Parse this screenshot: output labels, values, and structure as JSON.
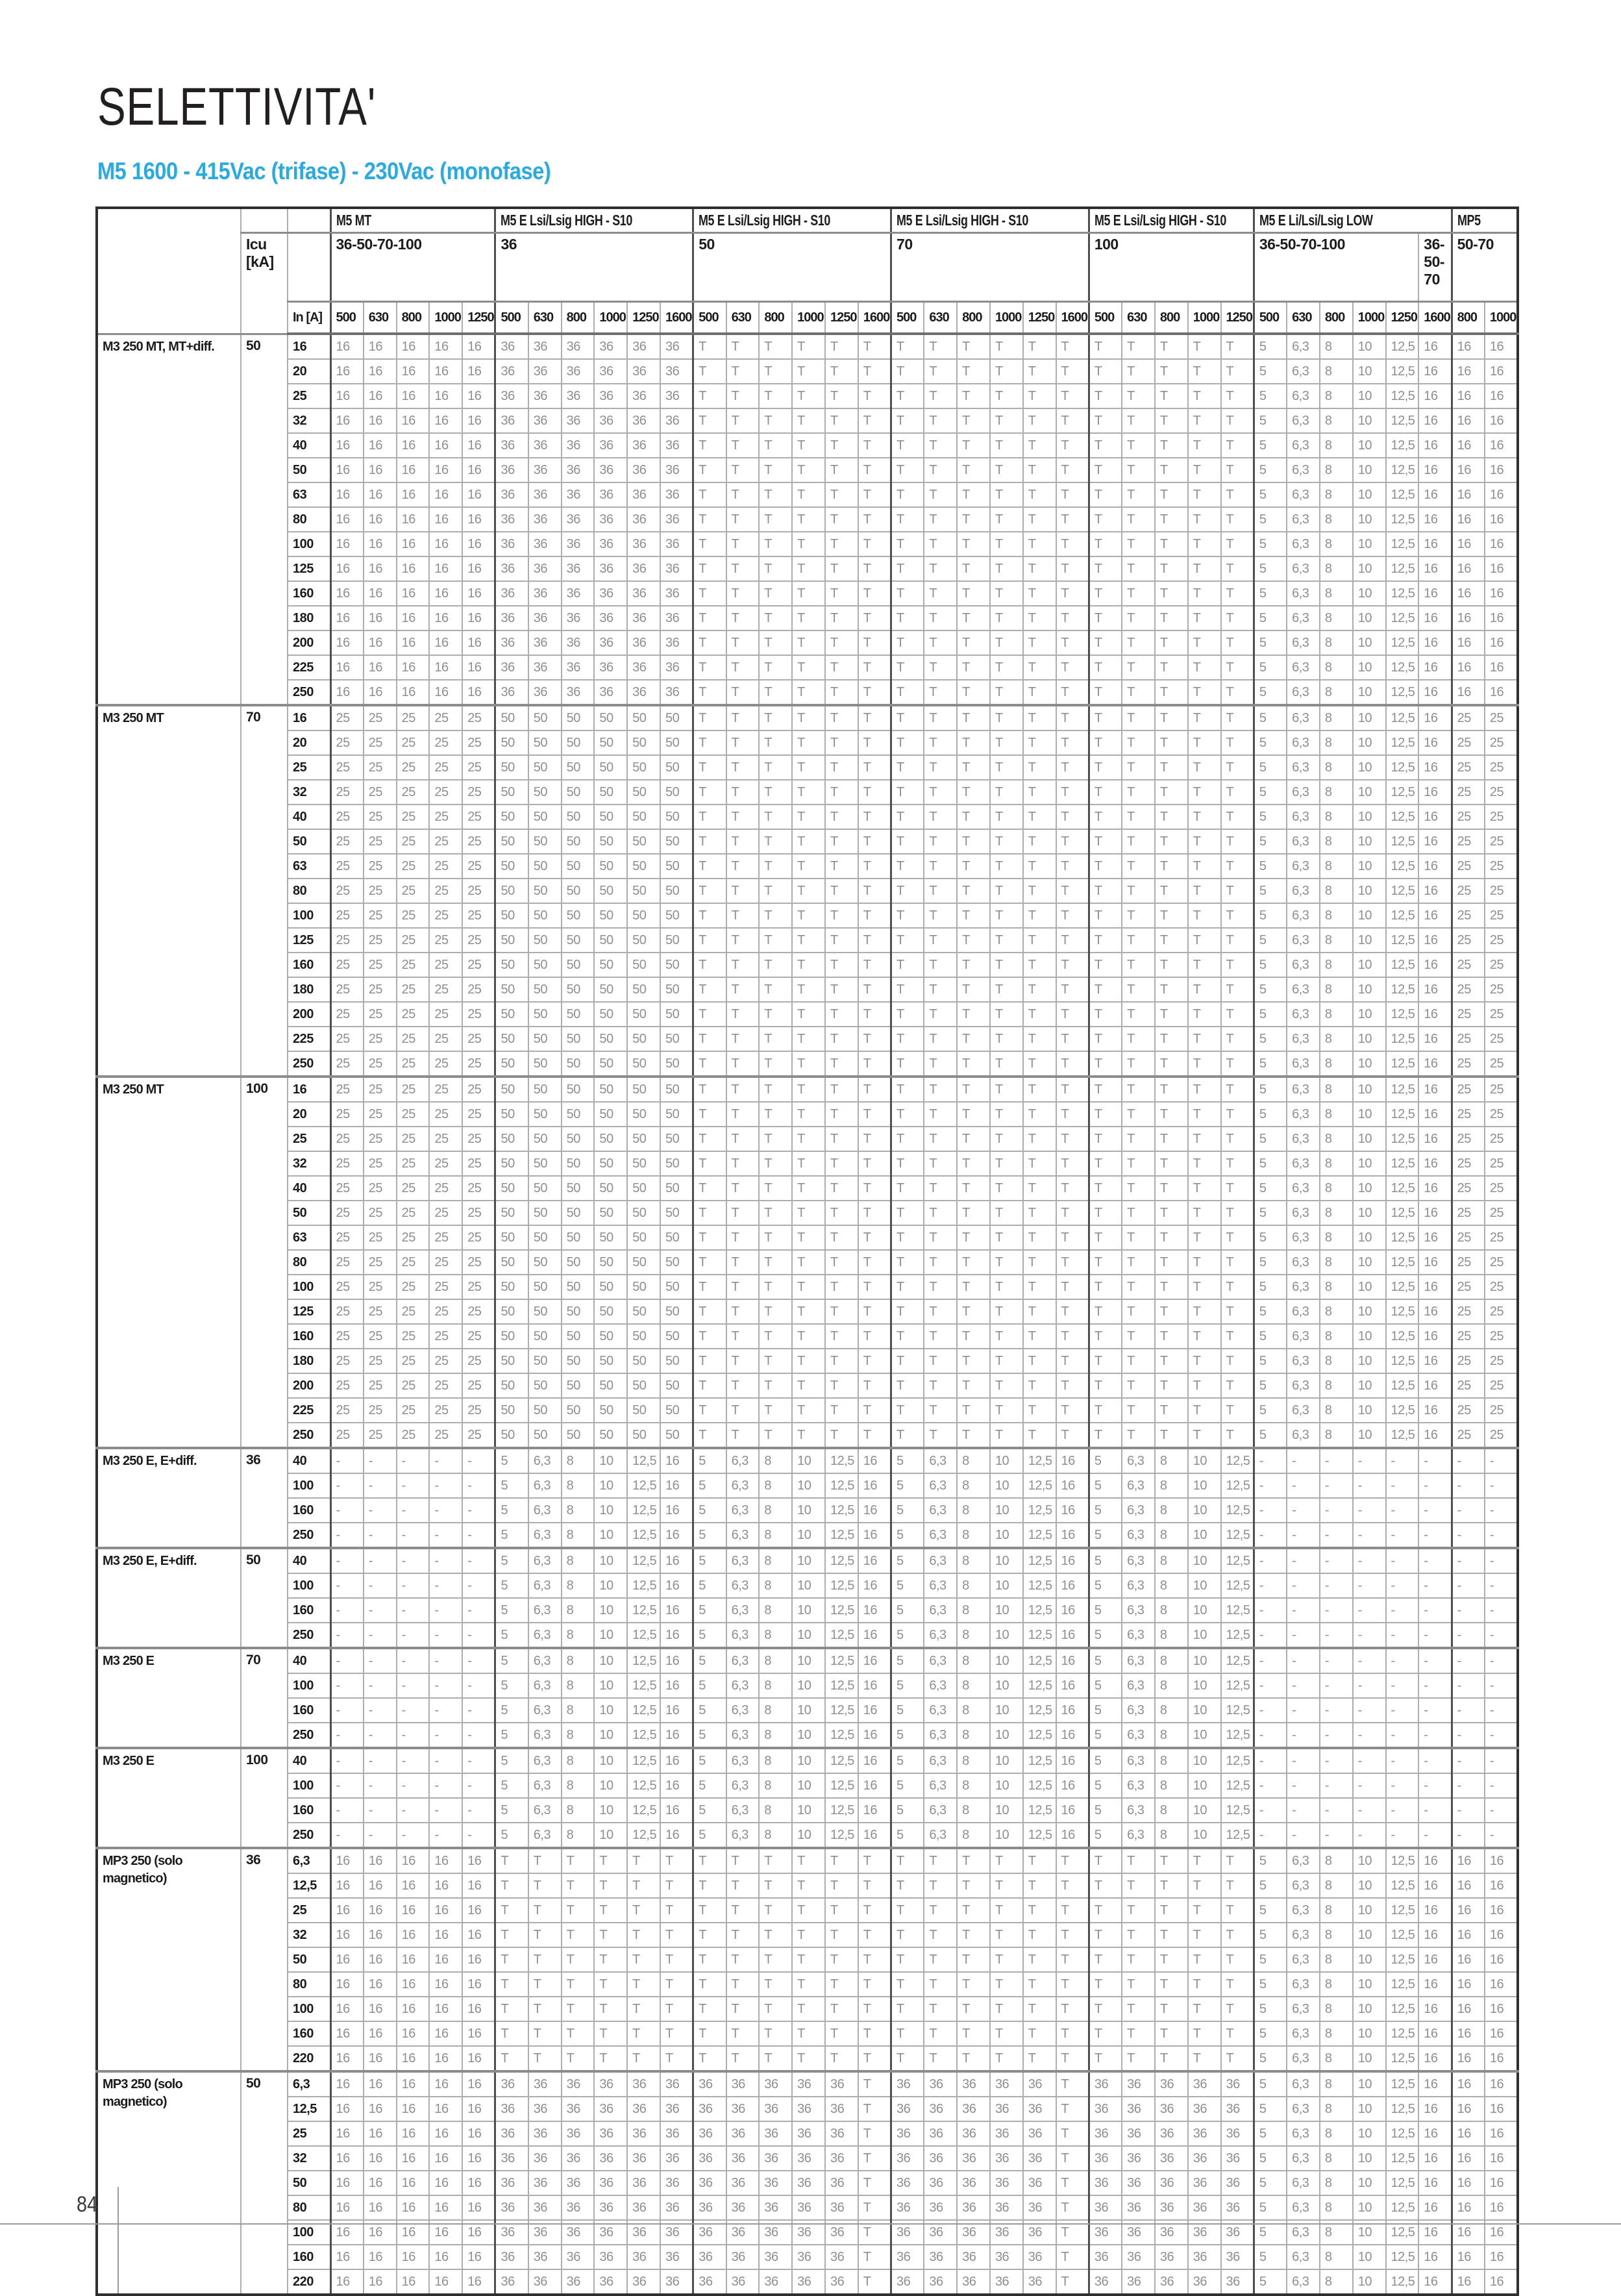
{
  "page": {
    "title": "SELETTIVITA'",
    "subtitle": "M5 1600 - 415Vac (trifase) - 230Vac (monofase)",
    "page_number": "84"
  },
  "colors": {
    "accent_blue": "#29abe2",
    "header_text": "#1c1c1c",
    "data_text": "#8f8f8f",
    "grid_line": "#adadad",
    "group_boundary_line": "#4f4f4f",
    "outer_border": "#2e2e2e"
  },
  "table": {
    "icu_label": "Icu [kA]",
    "in_label": "In [A]",
    "column_groups": [
      {
        "title": "M5 MT",
        "span": 5
      },
      {
        "title": "M5 E Lsi/Lsig HIGH - S10",
        "span": 6
      },
      {
        "title": "M5 E Lsi/Lsig HIGH - S10",
        "span": 6
      },
      {
        "title": "M5 E Lsi/Lsig HIGH - S10",
        "span": 6
      },
      {
        "title": "M5 E Lsi/Lsig HIGH - S10",
        "span": 5
      },
      {
        "title": "M5 E Li/Lsi/Lsig LOW",
        "span": 6
      },
      {
        "title": "MP5",
        "span": 2
      }
    ],
    "ka_cells": [
      {
        "label": "36-50-70-100",
        "span": 5
      },
      {
        "label": "36",
        "span": 6
      },
      {
        "label": "50",
        "span": 6
      },
      {
        "label": "70",
        "span": 6
      },
      {
        "label": "100",
        "span": 5
      },
      {
        "label": "36-50-70-100",
        "span": 5
      },
      {
        "label": "36-50-70",
        "span": 1,
        "narrow": true
      },
      {
        "label": "50-70",
        "span": 2
      }
    ],
    "columns": [
      "500",
      "630",
      "800",
      "1000",
      "1250",
      "500",
      "630",
      "800",
      "1000",
      "1250",
      "1600",
      "500",
      "630",
      "800",
      "1000",
      "1250",
      "1600",
      "500",
      "630",
      "800",
      "1000",
      "1250",
      "1600",
      "500",
      "630",
      "800",
      "1000",
      "1250",
      "500",
      "630",
      "800",
      "1000",
      "1250",
      "1600",
      "800",
      "1000"
    ],
    "row_groups": [
      {
        "name": "M3 250 MT, MT+diff.",
        "icu": "50",
        "rows": [
          "16",
          "20",
          "25",
          "32",
          "40",
          "50",
          "63",
          "80",
          "100",
          "125",
          "160",
          "180",
          "200",
          "225",
          "250"
        ],
        "values": [
          "16",
          "16",
          "16",
          "16",
          "16",
          "36",
          "36",
          "36",
          "36",
          "36",
          "36",
          "T",
          "T",
          "T",
          "T",
          "T",
          "T",
          "T",
          "T",
          "T",
          "T",
          "T",
          "T",
          "T",
          "T",
          "T",
          "T",
          "T",
          "5",
          "6,3",
          "8",
          "10",
          "12,5",
          "16",
          "16",
          "16"
        ]
      },
      {
        "name": "M3 250 MT",
        "icu": "70",
        "rows": [
          "16",
          "20",
          "25",
          "32",
          "40",
          "50",
          "63",
          "80",
          "100",
          "125",
          "160",
          "180",
          "200",
          "225",
          "250"
        ],
        "values": [
          "25",
          "25",
          "25",
          "25",
          "25",
          "50",
          "50",
          "50",
          "50",
          "50",
          "50",
          "T",
          "T",
          "T",
          "T",
          "T",
          "T",
          "T",
          "T",
          "T",
          "T",
          "T",
          "T",
          "T",
          "T",
          "T",
          "T",
          "T",
          "5",
          "6,3",
          "8",
          "10",
          "12,5",
          "16",
          "25",
          "25"
        ]
      },
      {
        "name": "M3 250 MT",
        "icu": "100",
        "rows": [
          "16",
          "20",
          "25",
          "32",
          "40",
          "50",
          "63",
          "80",
          "100",
          "125",
          "160",
          "180",
          "200",
          "225",
          "250"
        ],
        "values": [
          "25",
          "25",
          "25",
          "25",
          "25",
          "50",
          "50",
          "50",
          "50",
          "50",
          "50",
          "T",
          "T",
          "T",
          "T",
          "T",
          "T",
          "T",
          "T",
          "T",
          "T",
          "T",
          "T",
          "T",
          "T",
          "T",
          "T",
          "T",
          "5",
          "6,3",
          "8",
          "10",
          "12,5",
          "16",
          "25",
          "25"
        ]
      },
      {
        "name": "M3 250 E, E+diff.",
        "icu": "36",
        "rows": [
          "40",
          "100",
          "160",
          "250"
        ],
        "values": [
          "-",
          "-",
          "-",
          "-",
          "-",
          "5",
          "6,3",
          "8",
          "10",
          "12,5",
          "16",
          "5",
          "6,3",
          "8",
          "10",
          "12,5",
          "16",
          "5",
          "6,3",
          "8",
          "10",
          "12,5",
          "16",
          "5",
          "6,3",
          "8",
          "10",
          "12,5",
          "-",
          "-",
          "-",
          "-",
          "-",
          "-",
          "-",
          "-"
        ]
      },
      {
        "name": "M3 250 E, E+diff.",
        "icu": "50",
        "rows": [
          "40",
          "100",
          "160",
          "250"
        ],
        "values": [
          "-",
          "-",
          "-",
          "-",
          "-",
          "5",
          "6,3",
          "8",
          "10",
          "12,5",
          "16",
          "5",
          "6,3",
          "8",
          "10",
          "12,5",
          "16",
          "5",
          "6,3",
          "8",
          "10",
          "12,5",
          "16",
          "5",
          "6,3",
          "8",
          "10",
          "12,5",
          "-",
          "-",
          "-",
          "-",
          "-",
          "-",
          "-",
          "-"
        ]
      },
      {
        "name": "M3 250 E",
        "icu": "70",
        "rows": [
          "40",
          "100",
          "160",
          "250"
        ],
        "values": [
          "-",
          "-",
          "-",
          "-",
          "-",
          "5",
          "6,3",
          "8",
          "10",
          "12,5",
          "16",
          "5",
          "6,3",
          "8",
          "10",
          "12,5",
          "16",
          "5",
          "6,3",
          "8",
          "10",
          "12,5",
          "16",
          "5",
          "6,3",
          "8",
          "10",
          "12,5",
          "-",
          "-",
          "-",
          "-",
          "-",
          "-",
          "-",
          "-"
        ]
      },
      {
        "name": "M3 250 E",
        "icu": "100",
        "rows": [
          "40",
          "100",
          "160",
          "250"
        ],
        "values": [
          "-",
          "-",
          "-",
          "-",
          "-",
          "5",
          "6,3",
          "8",
          "10",
          "12,5",
          "16",
          "5",
          "6,3",
          "8",
          "10",
          "12,5",
          "16",
          "5",
          "6,3",
          "8",
          "10",
          "12,5",
          "16",
          "5",
          "6,3",
          "8",
          "10",
          "12,5",
          "-",
          "-",
          "-",
          "-",
          "-",
          "-",
          "-",
          "-"
        ]
      },
      {
        "name": "MP3 250  (solo magnetico)",
        "icu": "36",
        "rows": [
          "6,3",
          "12,5",
          "25",
          "32",
          "50",
          "80",
          "100",
          "160",
          "220"
        ],
        "values": [
          "16",
          "16",
          "16",
          "16",
          "16",
          "T",
          "T",
          "T",
          "T",
          "T",
          "T",
          "T",
          "T",
          "T",
          "T",
          "T",
          "T",
          "T",
          "T",
          "T",
          "T",
          "T",
          "T",
          "T",
          "T",
          "T",
          "T",
          "T",
          "5",
          "6,3",
          "8",
          "10",
          "12,5",
          "16",
          "16",
          "16"
        ]
      },
      {
        "name": "MP3 250  (solo magnetico)",
        "icu": "50",
        "rows": [
          "6,3",
          "12,5",
          "25",
          "32",
          "50",
          "80",
          "100",
          "160",
          "220"
        ],
        "values": [
          "16",
          "16",
          "16",
          "16",
          "16",
          "36",
          "36",
          "36",
          "36",
          "36",
          "36",
          "36",
          "36",
          "36",
          "36",
          "36",
          "T",
          "36",
          "36",
          "36",
          "36",
          "36",
          "T",
          "36",
          "36",
          "36",
          "36",
          "36",
          "5",
          "6,3",
          "8",
          "10",
          "12,5",
          "16",
          "16",
          "16"
        ]
      }
    ]
  }
}
